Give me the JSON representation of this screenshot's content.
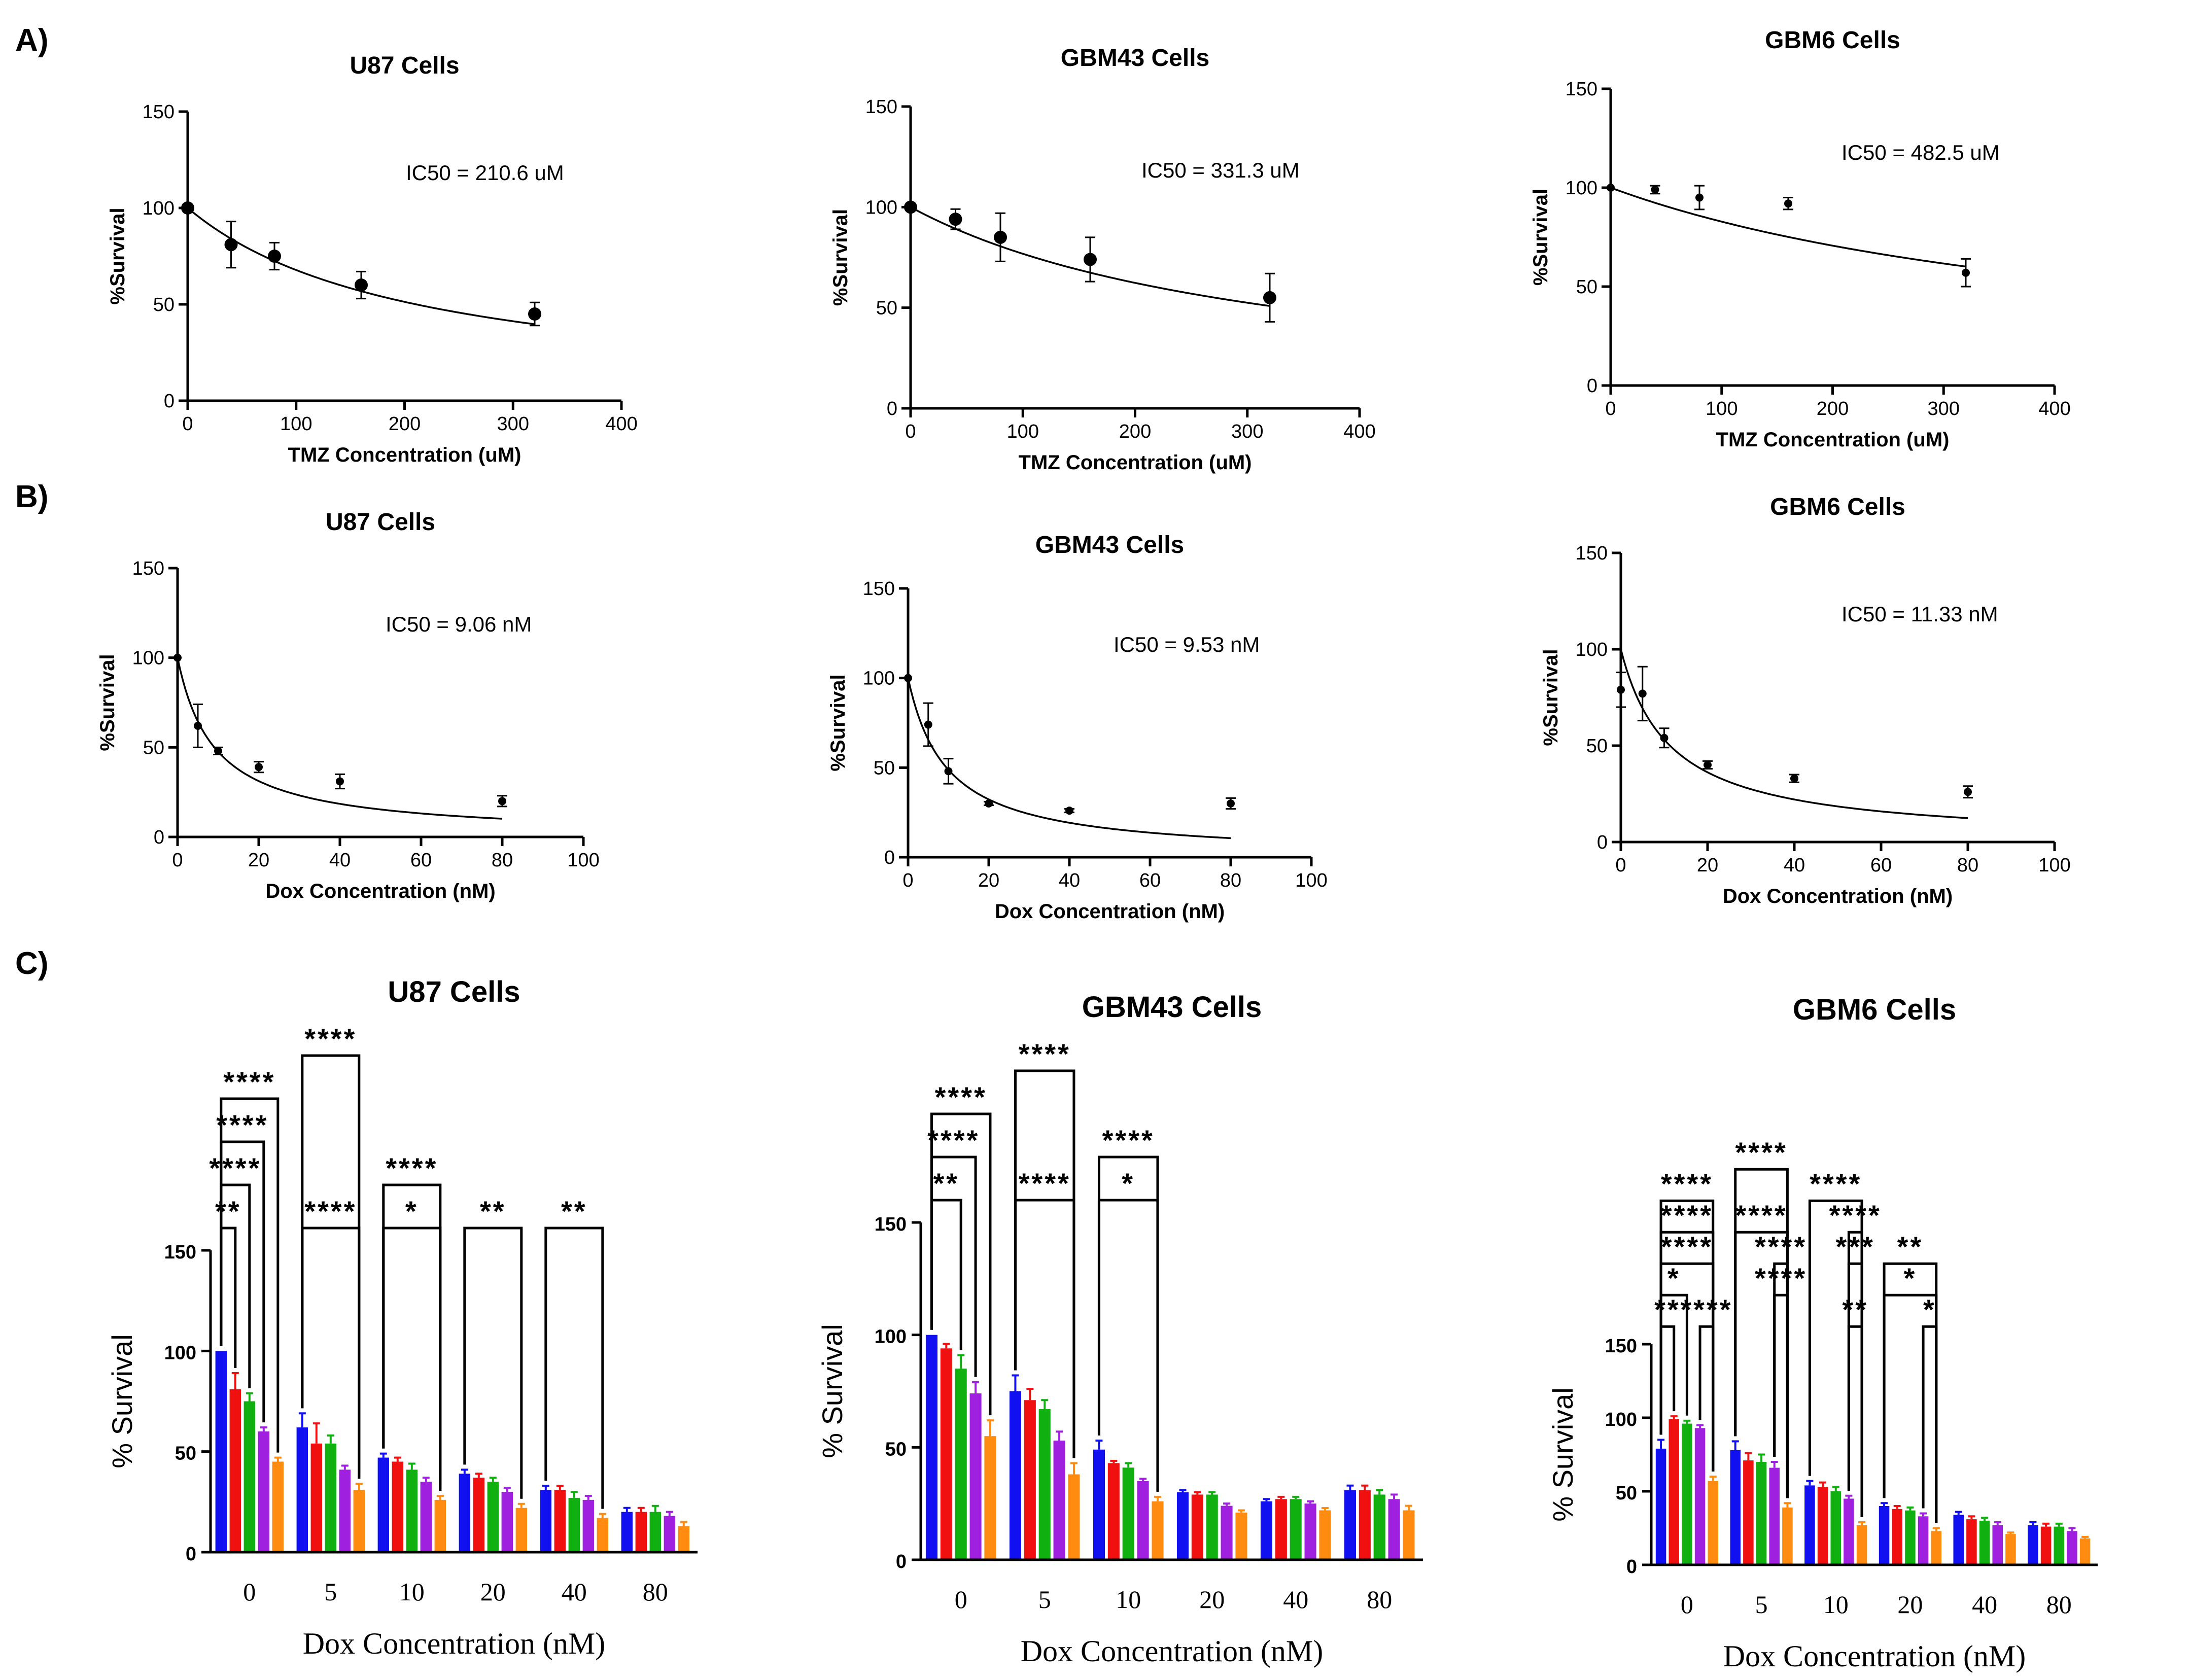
{
  "panel_labels": [
    "A)",
    "B)",
    "C)"
  ],
  "colors": {
    "series": [
      "#1010f0",
      "#f01010",
      "#10b010",
      "#a020e0",
      "#ff8c10"
    ],
    "axis": "#000000"
  },
  "chart_data": [
    {
      "id": "A1",
      "type": "scatter",
      "title": "U87 Cells",
      "xlabel": "TMZ Concentration  (uM)",
      "ylabel": "%Survival",
      "xlim": [
        0,
        400
      ],
      "ylim": [
        0,
        150
      ],
      "xticks": [
        0,
        100,
        200,
        300,
        400
      ],
      "yticks": [
        0,
        50,
        100,
        150
      ],
      "annotation": "IC50 = 210.6 uM",
      "points": [
        {
          "x": 0,
          "y": 100,
          "err": 0
        },
        {
          "x": 40,
          "y": 81,
          "err": 12
        },
        {
          "x": 80,
          "y": 75,
          "err": 7
        },
        {
          "x": 160,
          "y": 60,
          "err": 7
        },
        {
          "x": 320,
          "y": 45,
          "err": 6
        }
      ],
      "fit": {
        "model": "hill",
        "ic50": 210.6,
        "max": 100,
        "start": 0,
        "end": 320
      }
    },
    {
      "id": "A2",
      "type": "scatter",
      "title": "GBM43 Cells",
      "xlabel": "TMZ Concentration  (uM)",
      "ylabel": "%Survival",
      "xlim": [
        0,
        400
      ],
      "ylim": [
        0,
        150
      ],
      "xticks": [
        0,
        100,
        200,
        300,
        400
      ],
      "yticks": [
        0,
        50,
        100,
        150
      ],
      "annotation": "IC50 = 331.3 uM",
      "points": [
        {
          "x": 0,
          "y": 100,
          "err": 0
        },
        {
          "x": 40,
          "y": 94,
          "err": 5
        },
        {
          "x": 80,
          "y": 85,
          "err": 12
        },
        {
          "x": 160,
          "y": 74,
          "err": 11
        },
        {
          "x": 320,
          "y": 55,
          "err": 12
        }
      ],
      "fit": {
        "model": "hill",
        "ic50": 331.3,
        "max": 100,
        "start": 0,
        "end": 320
      }
    },
    {
      "id": "A3",
      "type": "scatter",
      "title": "GBM6 Cells",
      "xlabel": "TMZ Concentration  (uM)",
      "ylabel": "%Survival",
      "xlim": [
        0,
        400
      ],
      "ylim": [
        0,
        150
      ],
      "xticks": [
        0,
        100,
        200,
        300,
        400
      ],
      "yticks": [
        0,
        50,
        100,
        150
      ],
      "annotation": "IC50 = 482.5 uM",
      "points": [
        {
          "x": 0,
          "y": 100,
          "err": 0
        },
        {
          "x": 40,
          "y": 99,
          "err": 2
        },
        {
          "x": 80,
          "y": 95,
          "err": 6
        },
        {
          "x": 160,
          "y": 92,
          "err": 3
        },
        {
          "x": 320,
          "y": 57,
          "err": 7
        }
      ],
      "fit": {
        "model": "hill",
        "ic50": 482.5,
        "max": 100,
        "start": 0,
        "end": 320
      }
    },
    {
      "id": "B1",
      "type": "scatter",
      "title": "U87 Cells",
      "xlabel": "Dox Concentration (nM)",
      "ylabel": "%Survival",
      "xlim": [
        0,
        100
      ],
      "ylim": [
        0,
        150
      ],
      "xticks": [
        0,
        20,
        40,
        60,
        80,
        100
      ],
      "yticks": [
        0,
        50,
        100,
        150
      ],
      "annotation": "IC50 = 9.06 nM",
      "points": [
        {
          "x": 0,
          "y": 100,
          "err": 0
        },
        {
          "x": 5,
          "y": 62,
          "err": 12
        },
        {
          "x": 10,
          "y": 48,
          "err": 2
        },
        {
          "x": 20,
          "y": 39,
          "err": 3
        },
        {
          "x": 40,
          "y": 31,
          "err": 4
        },
        {
          "x": 80,
          "y": 20,
          "err": 3
        }
      ],
      "fit": {
        "model": "hill",
        "ic50": 9.06,
        "max": 100,
        "start": 0,
        "end": 80
      }
    },
    {
      "id": "B2",
      "type": "scatter",
      "title": "GBM43 Cells",
      "xlabel": "Dox Concentration (nM)",
      "ylabel": "%Survival",
      "xlim": [
        0,
        100
      ],
      "ylim": [
        0,
        150
      ],
      "xticks": [
        0,
        20,
        40,
        60,
        80,
        100
      ],
      "yticks": [
        0,
        50,
        100,
        150
      ],
      "annotation": "IC50 = 9.53 nM",
      "points": [
        {
          "x": 0,
          "y": 100,
          "err": 0
        },
        {
          "x": 5,
          "y": 74,
          "err": 12
        },
        {
          "x": 10,
          "y": 48,
          "err": 7
        },
        {
          "x": 20,
          "y": 30,
          "err": 1
        },
        {
          "x": 40,
          "y": 26,
          "err": 1
        },
        {
          "x": 80,
          "y": 30,
          "err": 3
        }
      ],
      "fit": {
        "model": "hill",
        "ic50": 9.53,
        "max": 100,
        "start": 0,
        "end": 80
      }
    },
    {
      "id": "B3",
      "type": "scatter",
      "title": "GBM6 Cells",
      "xlabel": "Dox Concentration (nM)",
      "ylabel": "%Survival",
      "xlim": [
        0,
        100
      ],
      "ylim": [
        0,
        150
      ],
      "xticks": [
        0,
        20,
        40,
        60,
        80,
        100
      ],
      "yticks": [
        0,
        50,
        100,
        150
      ],
      "annotation": "IC50 = 11.33 nM",
      "points": [
        {
          "x": 0,
          "y": 79,
          "err": 9
        },
        {
          "x": 5,
          "y": 77,
          "err": 14
        },
        {
          "x": 10,
          "y": 54,
          "err": 5
        },
        {
          "x": 20,
          "y": 40,
          "err": 2
        },
        {
          "x": 40,
          "y": 33,
          "err": 2
        },
        {
          "x": 80,
          "y": 26,
          "err": 3
        }
      ],
      "fit": {
        "model": "hill",
        "ic50": 11.33,
        "max": 100,
        "start": 0,
        "end": 80
      }
    },
    {
      "id": "C1",
      "type": "bar",
      "title": "U87 Cells",
      "xlabel": "Dox Concentration (nM)",
      "ylabel": "% Survival",
      "categories": [
        "0",
        "5",
        "10",
        "20",
        "40",
        "80"
      ],
      "ylim": [
        0,
        150
      ],
      "yticks": [
        0,
        50,
        100,
        150
      ],
      "series": [
        {
          "values": [
            100,
            62,
            47,
            39,
            31,
            20
          ],
          "errors": [
            0,
            7,
            2,
            2,
            2,
            2
          ]
        },
        {
          "values": [
            81,
            54,
            45,
            37,
            31,
            20
          ],
          "errors": [
            8,
            10,
            2,
            2,
            2,
            2
          ]
        },
        {
          "values": [
            75,
            54,
            41,
            35,
            27,
            20
          ],
          "errors": [
            4,
            4,
            3,
            2,
            3,
            3
          ]
        },
        {
          "values": [
            60,
            41,
            35,
            30,
            26,
            18
          ],
          "errors": [
            2,
            2,
            2,
            2,
            2,
            2
          ]
        },
        {
          "values": [
            45,
            31,
            26,
            22,
            17,
            13
          ],
          "errors": [
            2,
            3,
            2,
            2,
            2,
            2
          ]
        }
      ],
      "significance": [
        {
          "group": 0,
          "from": 0,
          "to": 1,
          "level": 1,
          "label": "**"
        },
        {
          "group": 0,
          "from": 0,
          "to": 2,
          "level": 2,
          "label": "****"
        },
        {
          "group": 0,
          "from": 0,
          "to": 3,
          "level": 3,
          "label": "****"
        },
        {
          "group": 0,
          "from": 0,
          "to": 4,
          "level": 4,
          "label": "****"
        },
        {
          "group": 1,
          "from": 0,
          "to": 4,
          "level": 1,
          "label": "****"
        },
        {
          "group": 1,
          "from": 0,
          "to": 4,
          "level": 5,
          "label": "****"
        },
        {
          "group": 2,
          "from": 0,
          "to": 4,
          "level": 1,
          "label": "*"
        },
        {
          "group": 2,
          "from": 0,
          "to": 4,
          "level": 2,
          "label": "****"
        },
        {
          "group": 3,
          "from": 0,
          "to": 4,
          "level": 1,
          "label": "**"
        },
        {
          "group": 4,
          "from": 0,
          "to": 4,
          "level": 1,
          "label": "**"
        }
      ]
    },
    {
      "id": "C2",
      "type": "bar",
      "title": "GBM43 Cells",
      "xlabel": "Dox Concentration (nM)",
      "ylabel": "% Survival",
      "categories": [
        "0",
        "5",
        "10",
        "20",
        "40",
        "80"
      ],
      "ylim": [
        0,
        150
      ],
      "yticks": [
        0,
        50,
        100,
        150
      ],
      "series": [
        {
          "values": [
            100,
            75,
            49,
            30,
            26,
            31
          ],
          "errors": [
            0,
            7,
            4,
            1,
            1,
            2
          ]
        },
        {
          "values": [
            94,
            71,
            43,
            29,
            27,
            31
          ],
          "errors": [
            2,
            5,
            1,
            1,
            1,
            2
          ]
        },
        {
          "values": [
            85,
            67,
            41,
            29,
            27,
            29
          ],
          "errors": [
            6,
            4,
            2,
            1,
            1,
            2
          ]
        },
        {
          "values": [
            74,
            53,
            35,
            24,
            25,
            27
          ],
          "errors": [
            5,
            4,
            1,
            1,
            1,
            2
          ]
        },
        {
          "values": [
            55,
            38,
            26,
            21,
            22,
            22
          ],
          "errors": [
            7,
            5,
            2,
            1,
            1,
            2
          ]
        }
      ],
      "significance": [
        {
          "group": 0,
          "from": 0,
          "to": 2,
          "level": 1,
          "label": "**"
        },
        {
          "group": 0,
          "from": 0,
          "to": 3,
          "level": 2,
          "label": "****"
        },
        {
          "group": 0,
          "from": 0,
          "to": 4,
          "level": 3,
          "label": "****"
        },
        {
          "group": 1,
          "from": 0,
          "to": 4,
          "level": 1,
          "label": "****"
        },
        {
          "group": 1,
          "from": 0,
          "to": 4,
          "level": 4,
          "label": "****"
        },
        {
          "group": 2,
          "from": 0,
          "to": 4,
          "level": 1,
          "label": "*"
        },
        {
          "group": 2,
          "from": 0,
          "to": 4,
          "level": 2,
          "label": "****"
        }
      ]
    },
    {
      "id": "C3",
      "type": "bar",
      "title": "GBM6 Cells",
      "xlabel": "Dox Concentration (nM)",
      "ylabel": "% Survival",
      "categories": [
        "0",
        "5",
        "10",
        "20",
        "40",
        "80"
      ],
      "ylim": [
        0,
        150
      ],
      "yticks": [
        0,
        50,
        100,
        150
      ],
      "series": [
        {
          "values": [
            79,
            78,
            54,
            40,
            34,
            27
          ],
          "errors": [
            6,
            6,
            3,
            2,
            2,
            2
          ]
        },
        {
          "values": [
            99,
            71,
            53,
            38,
            31,
            26
          ],
          "errors": [
            2,
            5,
            3,
            2,
            2,
            2
          ]
        },
        {
          "values": [
            96,
            70,
            50,
            37,
            30,
            26
          ],
          "errors": [
            2,
            5,
            3,
            2,
            2,
            2
          ]
        },
        {
          "values": [
            93,
            66,
            45,
            33,
            27,
            23
          ],
          "errors": [
            2,
            4,
            2,
            2,
            2,
            2
          ]
        },
        {
          "values": [
            57,
            39,
            27,
            23,
            21,
            18
          ],
          "errors": [
            3,
            3,
            2,
            2,
            1,
            1
          ]
        }
      ],
      "significance": [
        {
          "group": 0,
          "from": 0,
          "to": 1,
          "level": 1,
          "label": "**"
        },
        {
          "group": 0,
          "from": 0,
          "to": 2,
          "level": 2,
          "label": "*"
        },
        {
          "group": 0,
          "from": 3,
          "to": 4,
          "level": 1,
          "label": "****"
        },
        {
          "group": 0,
          "from": 0,
          "to": 4,
          "level": 3,
          "label": "****"
        },
        {
          "group": 0,
          "from": 0,
          "to": 4,
          "level": 4,
          "label": "****"
        },
        {
          "group": 0,
          "from": 0,
          "to": 4,
          "level": 5,
          "label": "****"
        },
        {
          "group": 1,
          "from": 3,
          "to": 4,
          "level": 2,
          "label": "****"
        },
        {
          "group": 1,
          "from": 3,
          "to": 4,
          "level": 3,
          "label": "****"
        },
        {
          "group": 1,
          "from": 0,
          "to": 4,
          "level": 4,
          "label": "****"
        },
        {
          "group": 1,
          "from": 0,
          "to": 4,
          "level": 6,
          "label": "****"
        },
        {
          "group": 2,
          "from": 3,
          "to": 4,
          "level": 1,
          "label": "**"
        },
        {
          "group": 2,
          "from": 3,
          "to": 4,
          "level": 3,
          "label": "***"
        },
        {
          "group": 2,
          "from": 3,
          "to": 4,
          "level": 4,
          "label": "****"
        },
        {
          "group": 2,
          "from": 0,
          "to": 4,
          "level": 5,
          "label": "****"
        },
        {
          "group": 3,
          "from": 3,
          "to": 4,
          "level": 1,
          "label": "*"
        },
        {
          "group": 3,
          "from": 0,
          "to": 4,
          "level": 2,
          "label": "*"
        },
        {
          "group": 3,
          "from": 0,
          "to": 4,
          "level": 3,
          "label": "**"
        }
      ]
    }
  ]
}
